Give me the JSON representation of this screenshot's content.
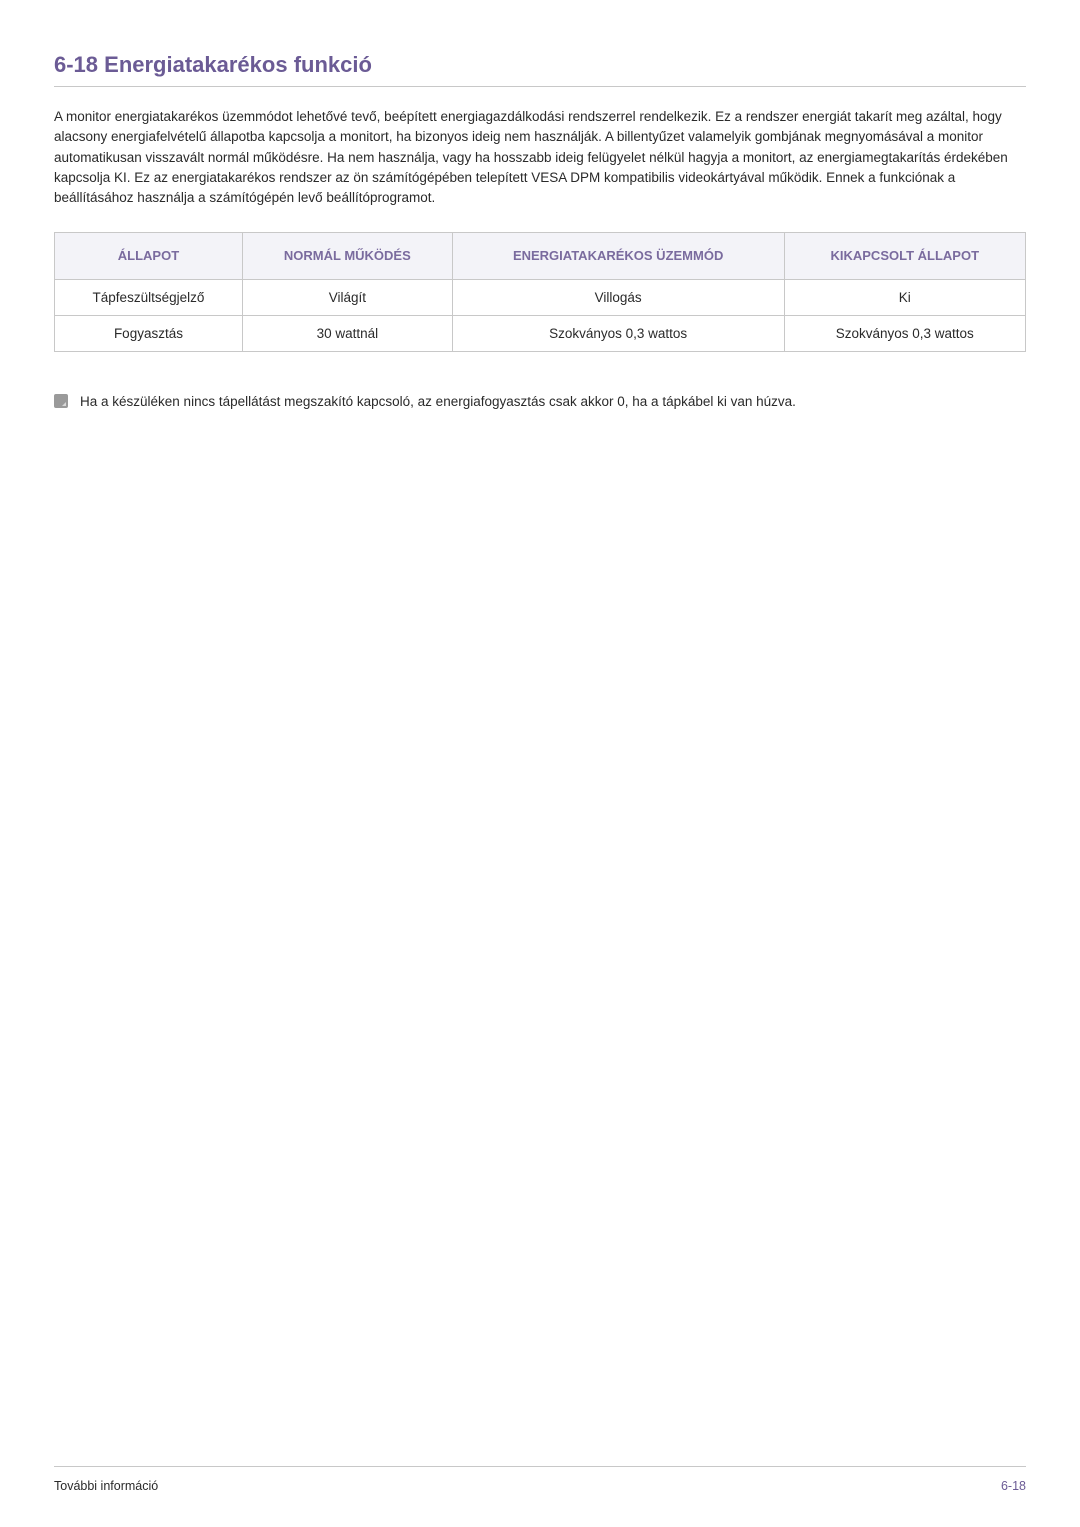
{
  "heading": "6-18   Energiatakarékos funkció",
  "paragraph": "A monitor energiatakarékos üzemmódot lehetővé tevő, beépített energiagazdálkodási rendszerrel rendelkezik. Ez a rendszer energiát takarít meg azáltal, hogy alacsony energiafelvételű állapotba kapcsolja a monitort, ha bizonyos ideig nem használják. A billentyűzet valamelyik gombjának megnyomásával a monitor automatikusan visszavált normál működésre. Ha nem használja, vagy ha hosszabb ideig felügyelet nélkül hagyja a monitort, az energiamegtakarítás érdekében kapcsolja KI. Ez az energiatakarékos rendszer az ön számítógépében telepített VESA DPM kompatibilis videokártyával működik. Ennek a funkciónak a beállításához használja a számítógépén levő beállítóprogramot.",
  "table": {
    "headers": [
      "ÁLLAPOT",
      "NORMÁL MŰKÖDÉS",
      "ENERGIATAKARÉKOS ÜZEMMÓD",
      "KIKAPCSOLT ÁLLAPOT"
    ],
    "rows": [
      [
        "Tápfeszültségjelző",
        "Világít",
        "Villogás",
        "Ki"
      ],
      [
        "Fogyasztás",
        "30 wattnál",
        "Szokványos 0,3 wattos",
        "Szokványos 0,3 wattos"
      ]
    ],
    "header_bg": "#f3f3f8",
    "header_color": "#7a6b9e",
    "border_color": "#c8c8c8",
    "col_widths": [
      "25%",
      "25%",
      "25%",
      "25%"
    ]
  },
  "note": "Ha a készüléken nincs tápellátást megszakító kapcsoló, az energiafogyasztás csak akkor 0, ha a tápkábel ki van húzva.",
  "footer_left": "További információ",
  "footer_right": "6-18",
  "colors": {
    "heading": "#6b5b95",
    "text": "#2a2a2a",
    "page_num": "#6b5b95",
    "rule": "#c8c8c8",
    "note_icon": "#9a9a9a"
  },
  "typography": {
    "heading_size_pt": 16,
    "body_size_pt": 10,
    "table_header_size_pt": 10,
    "footer_size_pt": 9
  }
}
